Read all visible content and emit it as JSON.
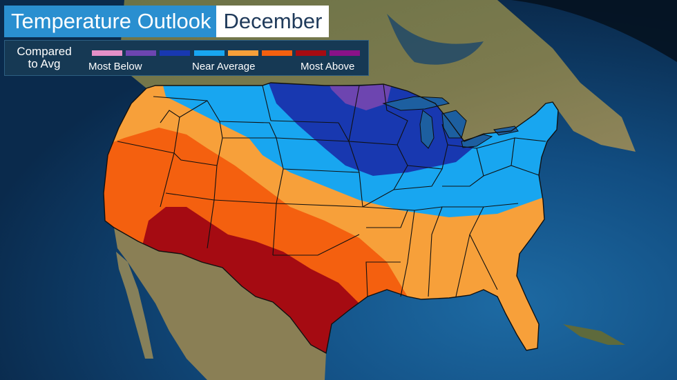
{
  "title": {
    "main": "Temperature Outlook",
    "month": "December"
  },
  "legend": {
    "caption_line1": "Compared",
    "caption_line2": "to Avg",
    "colors": [
      "#e58fc8",
      "#6d45b0",
      "#1838b0",
      "#18a6f0",
      "#f7a03a",
      "#f4600f",
      "#a50b12",
      "#8a1288"
    ],
    "label_low": "Most Below",
    "label_mid": "Near Average",
    "label_high": "Most Above"
  },
  "map_colors": {
    "ocean": "#0e3f6e",
    "land": "#6d7a44",
    "most_below": "#6d45b0",
    "much_below": "#1838b0",
    "below": "#18a6f0",
    "above": "#f7a03a",
    "much_above": "#f4600f",
    "most_above": "#a50b12"
  }
}
